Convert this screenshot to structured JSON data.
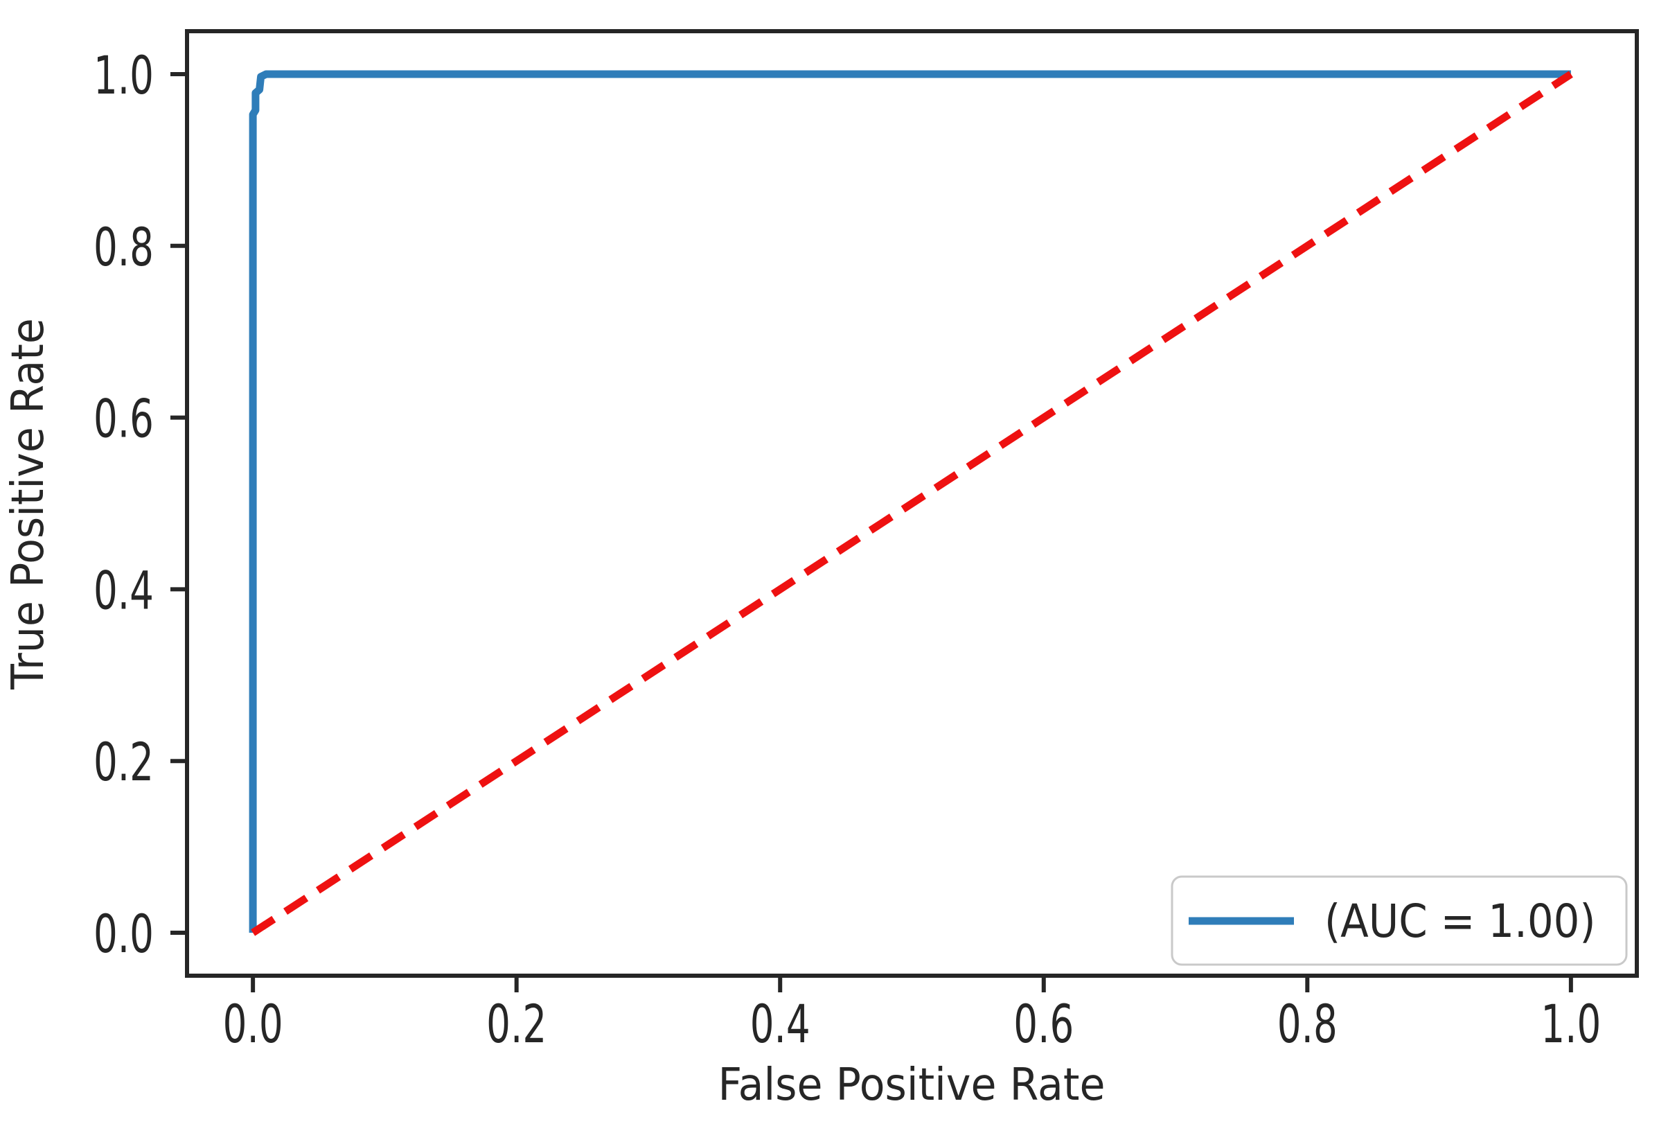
{
  "chart_data": {
    "type": "line",
    "title": "",
    "xlabel": "False Positive Rate",
    "ylabel": "True Positive Rate",
    "xlim": [
      -0.05,
      1.05
    ],
    "ylim": [
      -0.05,
      1.05
    ],
    "xticks": [
      "0.0",
      "0.2",
      "0.4",
      "0.6",
      "0.8",
      "1.0"
    ],
    "yticks": [
      "0.0",
      "0.2",
      "0.4",
      "0.6",
      "0.8",
      "1.0"
    ],
    "grid": false,
    "axis_color": "#262626",
    "background_color": "#ffffff",
    "series": [
      {
        "name": "ROC curve",
        "color": "#2f7db9",
        "style": "solid",
        "data_name": "series-roc-curve",
        "points": [
          [
            0.0,
            0.0
          ],
          [
            0.0,
            0.953
          ],
          [
            0.002,
            0.958
          ],
          [
            0.002,
            0.978
          ],
          [
            0.005,
            0.982
          ],
          [
            0.006,
            0.997
          ],
          [
            0.01,
            1.0
          ],
          [
            1.0,
            1.0
          ]
        ]
      },
      {
        "name": "chance diagonal",
        "color": "#ee1111",
        "style": "dashed",
        "data_name": "series-chance-diagonal",
        "points": [
          [
            0.0,
            0.0
          ],
          [
            1.0,
            1.0
          ]
        ]
      }
    ],
    "legend": {
      "position": "lower right",
      "border_color": "#c9c9c9",
      "fill_color": "#ffffff",
      "entries": [
        {
          "label": "(AUC = 1.00)",
          "color": "#2f7db9",
          "style": "solid"
        }
      ]
    }
  }
}
